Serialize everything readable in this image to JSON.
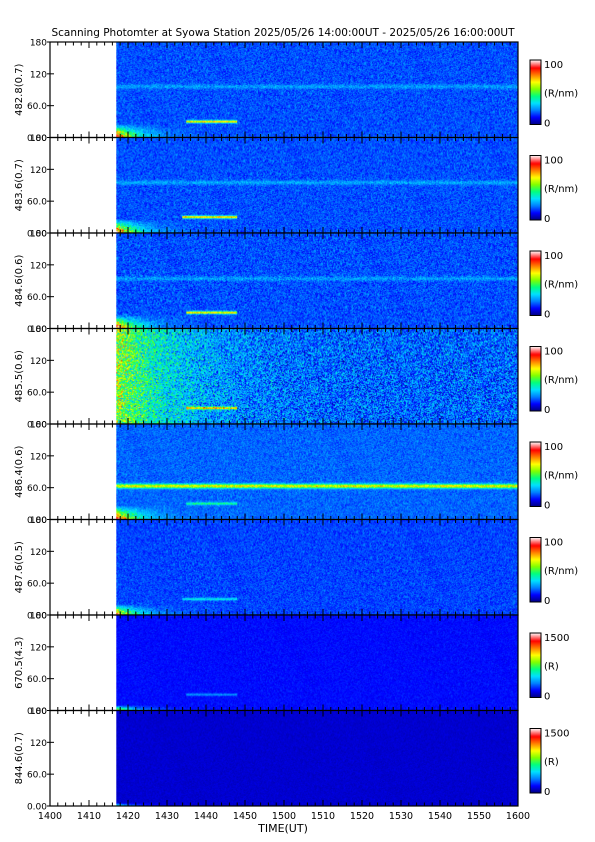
{
  "title": "Scanning Photomter at Syowa Station  2025/05/26 14:00:00UT - 2025/05/26 16:00:00UT",
  "chart_data": {
    "type": "heatmap",
    "title": "Scanning Photomter at Syowa Station  2025/05/26 14:00:00UT - 2025/05/26 16:00:00UT",
    "xlabel": "TIME(UT)",
    "x_ticks": [
      "1400",
      "1410",
      "1420",
      "1430",
      "1440",
      "1450",
      "1500",
      "1510",
      "1520",
      "1530",
      "1540",
      "1550",
      "1600"
    ],
    "x_range_minutes": [
      0,
      120
    ],
    "data_start_minute": 17,
    "y_ticks": [
      "0.00",
      "60.0",
      "120",
      "180"
    ],
    "y_range": [
      0,
      180
    ],
    "colormap": [
      "#000080",
      "#0000ff",
      "#0080ff",
      "#00e0ff",
      "#00ff80",
      "#80ff00",
      "#ffff00",
      "#ff8000",
      "#ff0000",
      "#ffe0e0"
    ],
    "panels": [
      {
        "ylabel": "482.8(0.7)",
        "cb_max": "100",
        "cb_min": "0",
        "cb_unit": "(R/nm)",
        "background": 0.18,
        "noise": 0.07,
        "bands": [
          {
            "y": 30,
            "x0": 35,
            "x1": 48,
            "value": 0.72
          },
          {
            "y": 96,
            "x0": 17,
            "x1": 120,
            "value": 0.26
          }
        ],
        "onset": {
          "y_top": 26,
          "value": 0.8
        }
      },
      {
        "ylabel": "483.6(0.7)",
        "cb_max": "100",
        "cb_min": "0",
        "cb_unit": "(R/nm)",
        "background": 0.18,
        "noise": 0.07,
        "bands": [
          {
            "y": 30,
            "x0": 34,
            "x1": 48,
            "value": 0.74
          },
          {
            "y": 95,
            "x0": 17,
            "x1": 120,
            "value": 0.27
          }
        ],
        "onset": {
          "y_top": 26,
          "value": 0.8
        }
      },
      {
        "ylabel": "484.6(0.6)",
        "cb_max": "100",
        "cb_min": "0",
        "cb_unit": "(R/nm)",
        "background": 0.18,
        "noise": 0.08,
        "bands": [
          {
            "y": 30,
            "x0": 35,
            "x1": 48,
            "value": 0.7
          },
          {
            "y": 94,
            "x0": 17,
            "x1": 120,
            "value": 0.26
          }
        ],
        "onset": {
          "y_top": 26,
          "value": 0.8
        }
      },
      {
        "ylabel": "485.5(0.6)",
        "cb_max": "100",
        "cb_min": "0",
        "cb_unit": "(R/nm)",
        "background": 0.2,
        "noise": 0.17,
        "bands": [
          {
            "y": 30,
            "x0": 35,
            "x1": 48,
            "value": 0.68
          }
        ],
        "onset": {
          "y_top": 180,
          "value": 0.38
        }
      },
      {
        "ylabel": "486.4(0.6)",
        "cb_max": "100",
        "cb_min": "0",
        "cb_unit": "(R/nm)",
        "background": 0.2,
        "noise": 0.06,
        "bands": [
          {
            "y": 63,
            "x0": 17,
            "x1": 120,
            "value": 0.66
          },
          {
            "y": 30,
            "x0": 35,
            "x1": 48,
            "value": 0.45
          }
        ],
        "onset": {
          "y_top": 26,
          "value": 0.8
        }
      },
      {
        "ylabel": "487.6(0.5)",
        "cb_max": "100",
        "cb_min": "0",
        "cb_unit": "(R/nm)",
        "background": 0.17,
        "noise": 0.06,
        "bands": [
          {
            "y": 30,
            "x0": 34,
            "x1": 48,
            "value": 0.36
          }
        ],
        "onset": {
          "y_top": 20,
          "value": 0.78
        }
      },
      {
        "ylabel": "670.5(4.3)",
        "cb_max": "1500",
        "cb_min": "0",
        "cb_unit": "(R)",
        "background": 0.12,
        "noise": 0.03,
        "bands": [
          {
            "y": 30,
            "x0": 35,
            "x1": 48,
            "value": 0.24
          }
        ],
        "onset": {
          "y_top": 10,
          "value": 0.55
        }
      },
      {
        "ylabel": "844.6(0.7)",
        "cb_max": "1500",
        "cb_min": "0",
        "cb_unit": "(R)",
        "background": 0.07,
        "noise": 0.02,
        "bands": [],
        "onset": {
          "y_top": 6,
          "value": 0.35
        }
      }
    ]
  }
}
